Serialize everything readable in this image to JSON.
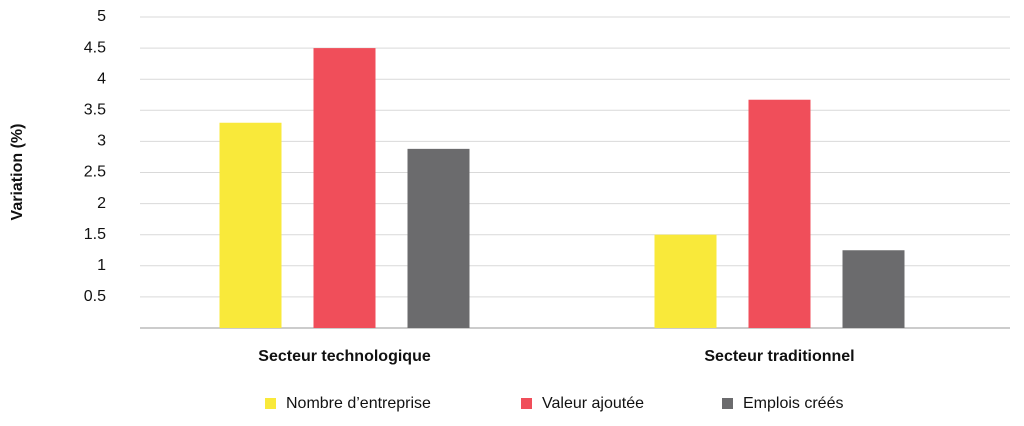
{
  "chart_data": {
    "type": "bar",
    "y_label": "Variation (%)",
    "categories": [
      "Secteur technologique",
      "Secteur traditionnel"
    ],
    "series": [
      {
        "name": "Nombre d’entreprise",
        "color": "#f9e93a",
        "values": [
          3.3,
          1.5
        ]
      },
      {
        "name": "Valeur ajoutée",
        "color": "#f04e5a",
        "values": [
          4.5,
          3.67
        ]
      },
      {
        "name": "Emplois créés",
        "color": "#6b6b6d",
        "values": [
          2.88,
          1.25
        ]
      }
    ],
    "ylim": [
      0,
      5
    ],
    "yticks": [
      0.5,
      1,
      1.5,
      2,
      2.5,
      3,
      3.5,
      4,
      4.5,
      5
    ],
    "grid": true
  }
}
